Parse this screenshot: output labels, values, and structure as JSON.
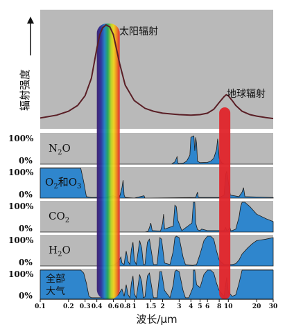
{
  "chart_data": {
    "type": "area",
    "xlabel": "波长/μm",
    "x_scale": "log",
    "xlim": [
      0.1,
      30
    ],
    "x_ticks": [
      {
        "label": "0.1",
        "value": 0.1
      },
      {
        "label": "0.2",
        "value": 0.2
      },
      {
        "label": "0.3",
        "value": 0.3
      },
      {
        "label": "0.4",
        "value": 0.4
      },
      {
        "label": "0.6",
        "value": 0.6
      },
      {
        "label": "0.8",
        "value": 0.8
      },
      {
        "label": "1",
        "value": 1
      },
      {
        "label": "1.5",
        "value": 1.5
      },
      {
        "label": "2",
        "value": 2
      },
      {
        "label": "3",
        "value": 3
      },
      {
        "label": "4",
        "value": 4
      },
      {
        "label": "5",
        "value": 5
      },
      {
        "label": "6",
        "value": 6
      },
      {
        "label": "8",
        "value": 8
      },
      {
        "label": "10",
        "value": 10
      },
      {
        "label": "20",
        "value": 20
      },
      {
        "label": "30",
        "value": 30
      }
    ],
    "top_panel": {
      "ylabel": "辐射强度",
      "curve": {
        "x": [
          0.1,
          0.15,
          0.2,
          0.25,
          0.3,
          0.35,
          0.4,
          0.43,
          0.46,
          0.5,
          0.55,
          0.6,
          0.7,
          0.8,
          1.0,
          1.3,
          1.6,
          2.0,
          3.0,
          4.0,
          5.0,
          6.0,
          7.0,
          8.0,
          9.0,
          9.5,
          10.0,
          11.0,
          12.0,
          14.0,
          17.0,
          20.0,
          25.0,
          30.0
        ],
        "y": [
          0.04,
          0.07,
          0.11,
          0.17,
          0.27,
          0.45,
          0.76,
          0.9,
          0.97,
          1.0,
          0.98,
          0.9,
          0.6,
          0.38,
          0.22,
          0.14,
          0.11,
          0.09,
          0.075,
          0.07,
          0.075,
          0.09,
          0.13,
          0.2,
          0.26,
          0.28,
          0.27,
          0.22,
          0.17,
          0.11,
          0.075,
          0.06,
          0.045,
          0.035
        ]
      },
      "annotations": [
        {
          "text": "太阳辐射",
          "x": 0.5
        },
        {
          "text": "地球辐射",
          "x": 9.5
        }
      ]
    },
    "highlight_bands": [
      {
        "name": "visible",
        "x": [
          0.4,
          0.7
        ],
        "color": "spectrum"
      },
      {
        "name": "infrared-window",
        "x": [
          8.0,
          10.5
        ],
        "color": "#e0242a"
      }
    ],
    "panels": [
      {
        "label": "N2O",
        "label_base": "N",
        "label_sub": "2",
        "label_tail": "O",
        "bg": "#b9b9b9",
        "fill": "#2f86cd",
        "y_ticks": [
          "100%",
          "0%"
        ],
        "x": [
          0.1,
          2.5,
          2.7,
          2.85,
          2.9,
          2.95,
          3.3,
          3.6,
          3.9,
          4.0,
          4.3,
          4.4,
          4.5,
          4.6,
          4.7,
          5.0,
          6.0,
          6.5,
          7.0,
          7.5,
          7.7,
          7.8,
          8.0,
          8.5,
          9.0,
          30
        ],
        "y": [
          0,
          0,
          0.08,
          0.25,
          0.05,
          0.02,
          0.03,
          0.1,
          0.3,
          0.9,
          0.95,
          0.45,
          0.9,
          0.7,
          0.1,
          0.05,
          0.06,
          0.1,
          0.2,
          0.5,
          0.85,
          0.7,
          0.2,
          0.05,
          0,
          0
        ]
      },
      {
        "label": "O2和O3",
        "label_parts": [
          "O",
          "2",
          "和O",
          "3"
        ],
        "bg": "#b9b9b9",
        "fill": "#2f86cd",
        "y_ticks": [
          "100%",
          "0%"
        ],
        "x": [
          0.1,
          0.2,
          0.27,
          0.29,
          0.31,
          0.35,
          0.5,
          0.6,
          0.66,
          0.7,
          0.74,
          0.76,
          0.78,
          0.8,
          1.0,
          1.27,
          1.3,
          1.5,
          4.5,
          4.7,
          4.8,
          5.0,
          8.0,
          9.0,
          9.4,
          9.6,
          10.0,
          10.5,
          13.0,
          14.0,
          14.5,
          15.0,
          30
        ],
        "y": [
          1,
          1,
          1,
          0.55,
          0.05,
          0.02,
          0.03,
          0.08,
          0.03,
          0.05,
          0.35,
          0.6,
          0.1,
          0.02,
          0,
          0.08,
          0,
          0,
          0.02,
          0.2,
          0.03,
          0.02,
          0.02,
          0.1,
          0.8,
          0.9,
          0.55,
          0.1,
          0.05,
          0.2,
          0.35,
          0.05,
          0.02
        ]
      },
      {
        "label": "CO2",
        "label_base": "CO",
        "label_sub": "2",
        "label_tail": "",
        "bg": "#b9b9b9",
        "fill": "#2f86cd",
        "y_ticks": [
          "100%",
          "0%"
        ],
        "x": [
          0.1,
          1.3,
          1.4,
          1.45,
          1.5,
          1.55,
          1.9,
          2.0,
          2.05,
          2.1,
          2.6,
          2.7,
          2.8,
          2.9,
          3.2,
          4.1,
          4.25,
          4.4,
          4.5,
          4.7,
          5.0,
          5.2,
          6.0,
          9.0,
          9.4,
          9.6,
          10.0,
          10.4,
          10.6,
          11.0,
          12.0,
          13.0,
          13.5,
          14.0,
          15.0,
          17.0,
          20.0,
          25.0,
          30
        ],
        "y": [
          0,
          0,
          0.02,
          0.15,
          0.3,
          0.05,
          0.03,
          0.3,
          0.6,
          0.1,
          0.2,
          0.9,
          0.85,
          0.4,
          0.05,
          0.3,
          1.0,
          1.0,
          0.3,
          0.08,
          0.05,
          0.1,
          0.05,
          0.05,
          0.15,
          0.05,
          0.08,
          0.15,
          0.05,
          0.05,
          0.1,
          0.5,
          0.85,
          1.0,
          1.0,
          0.85,
          0.6,
          0.45,
          0.35
        ]
      },
      {
        "label": "H2O",
        "label_base": "H",
        "label_sub": "2",
        "label_tail": "O",
        "bg": "#b9b9b9",
        "fill": "#2f86cd",
        "y_ticks": [
          "100%",
          "0%"
        ],
        "x": [
          0.1,
          0.55,
          0.62,
          0.68,
          0.72,
          0.74,
          0.78,
          0.8,
          0.82,
          0.86,
          0.9,
          0.93,
          0.97,
          1.0,
          1.05,
          1.1,
          1.14,
          1.2,
          1.25,
          1.3,
          1.38,
          1.45,
          1.6,
          1.75,
          1.87,
          1.95,
          2.1,
          2.4,
          2.6,
          2.7,
          2.8,
          3.0,
          3.3,
          3.5,
          3.8,
          4.2,
          4.6,
          5.0,
          5.5,
          6.0,
          6.5,
          7.0,
          7.5,
          8.0,
          9.0,
          10.0,
          11.0,
          12.0,
          13.0,
          14.0,
          16.0,
          18.0,
          20.0,
          25.0,
          30
        ],
        "y": [
          0,
          0,
          0.05,
          0.15,
          0.3,
          0.1,
          0.05,
          0.3,
          0.5,
          0.15,
          0.05,
          0.55,
          0.8,
          0.2,
          0.05,
          0.5,
          0.85,
          0.6,
          0.05,
          0.05,
          0.8,
          0.9,
          0.05,
          0.05,
          0.95,
          0.9,
          0.1,
          0.05,
          0.5,
          0.95,
          1.0,
          0.95,
          0.3,
          0.05,
          0.03,
          0.02,
          0.05,
          0.4,
          0.85,
          1.0,
          1.0,
          0.9,
          0.5,
          0.2,
          0.05,
          0.05,
          0.05,
          0.08,
          0.2,
          0.4,
          0.6,
          0.75,
          0.85,
          0.9,
          0.95
        ]
      },
      {
        "label": "全部大气",
        "label_lines": [
          "全部",
          "大气"
        ],
        "bg": "#b9b9b9",
        "fill": "#2f86cd",
        "y_ticks": [
          "100%",
          "0%"
        ],
        "x": [
          0.1,
          0.27,
          0.29,
          0.31,
          0.33,
          0.35,
          0.55,
          0.62,
          0.68,
          0.72,
          0.74,
          0.78,
          0.8,
          0.82,
          0.86,
          0.9,
          0.93,
          0.97,
          1.0,
          1.05,
          1.1,
          1.14,
          1.2,
          1.25,
          1.3,
          1.38,
          1.45,
          1.6,
          1.75,
          1.87,
          1.95,
          2.1,
          2.4,
          2.6,
          2.7,
          2.8,
          3.0,
          3.3,
          3.5,
          3.8,
          4.2,
          4.25,
          4.4,
          4.6,
          5.0,
          5.5,
          6.0,
          6.5,
          7.0,
          7.5,
          8.0,
          9.0,
          9.6,
          10.0,
          11.0,
          12.0,
          13.0,
          14.0,
          16.0,
          20.0,
          30
        ],
        "y": [
          1,
          1,
          0.9,
          0.55,
          0.1,
          0.05,
          0.05,
          0.08,
          0.15,
          0.3,
          0.35,
          0.1,
          0.3,
          0.5,
          0.15,
          0.05,
          0.55,
          0.8,
          0.2,
          0.05,
          0.5,
          0.85,
          0.6,
          0.05,
          0.08,
          0.8,
          0.9,
          0.05,
          0.05,
          0.95,
          0.95,
          0.3,
          0.05,
          0.5,
          0.95,
          1.0,
          0.95,
          0.3,
          0.05,
          0.05,
          0.4,
          1.0,
          1.0,
          0.5,
          0.4,
          0.85,
          1.0,
          1.0,
          0.9,
          0.55,
          0.3,
          0.1,
          0.75,
          0.25,
          0.1,
          0.15,
          0.55,
          1.0,
          1.0,
          1.0,
          1.0
        ]
      }
    ],
    "colors": {
      "panel_bg": "#b9b9b9",
      "absorption_fill": "#2f86cd",
      "curve": "#5a1f26",
      "ir_band": "#e0242a",
      "text": "#111111"
    },
    "grid": false
  }
}
